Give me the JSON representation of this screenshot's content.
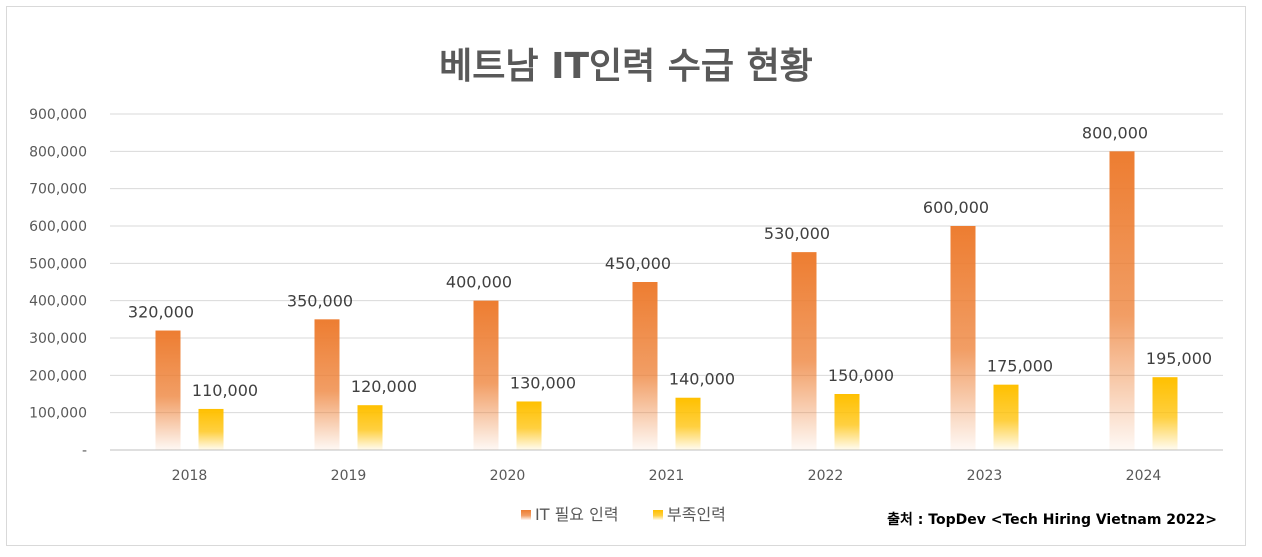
{
  "chart_data": {
    "type": "bar",
    "title": "베트남 IT인력 수급 현황",
    "categories": [
      "2018",
      "2019",
      "2020",
      "2021",
      "2022",
      "2023",
      "2024"
    ],
    "series": [
      {
        "name": "IT 필요 인력",
        "values": [
          320000,
          350000,
          400000,
          450000,
          530000,
          600000,
          800000
        ],
        "labels": [
          "320,000",
          "350,000",
          "400,000",
          "450,000",
          "530,000",
          "600,000",
          "800,000"
        ],
        "color": "#ED7D31"
      },
      {
        "name": "부족인력",
        "values": [
          110000,
          120000,
          130000,
          140000,
          150000,
          175000,
          195000
        ],
        "labels": [
          "110,000",
          "120,000",
          "130,000",
          "140,000",
          "150,000",
          "175,000",
          "195,000"
        ],
        "color": "#FFC000"
      }
    ],
    "ylim": [
      0,
      900000
    ],
    "yticks": [
      "-",
      "100,000",
      "200,000",
      "300,000",
      "400,000",
      "500,000",
      "600,000",
      "700,000",
      "800,000",
      "900,000"
    ],
    "grid": true,
    "legend": "bottom",
    "source": "출처 : TopDev <Tech Hiring Vietnam 2022>"
  }
}
